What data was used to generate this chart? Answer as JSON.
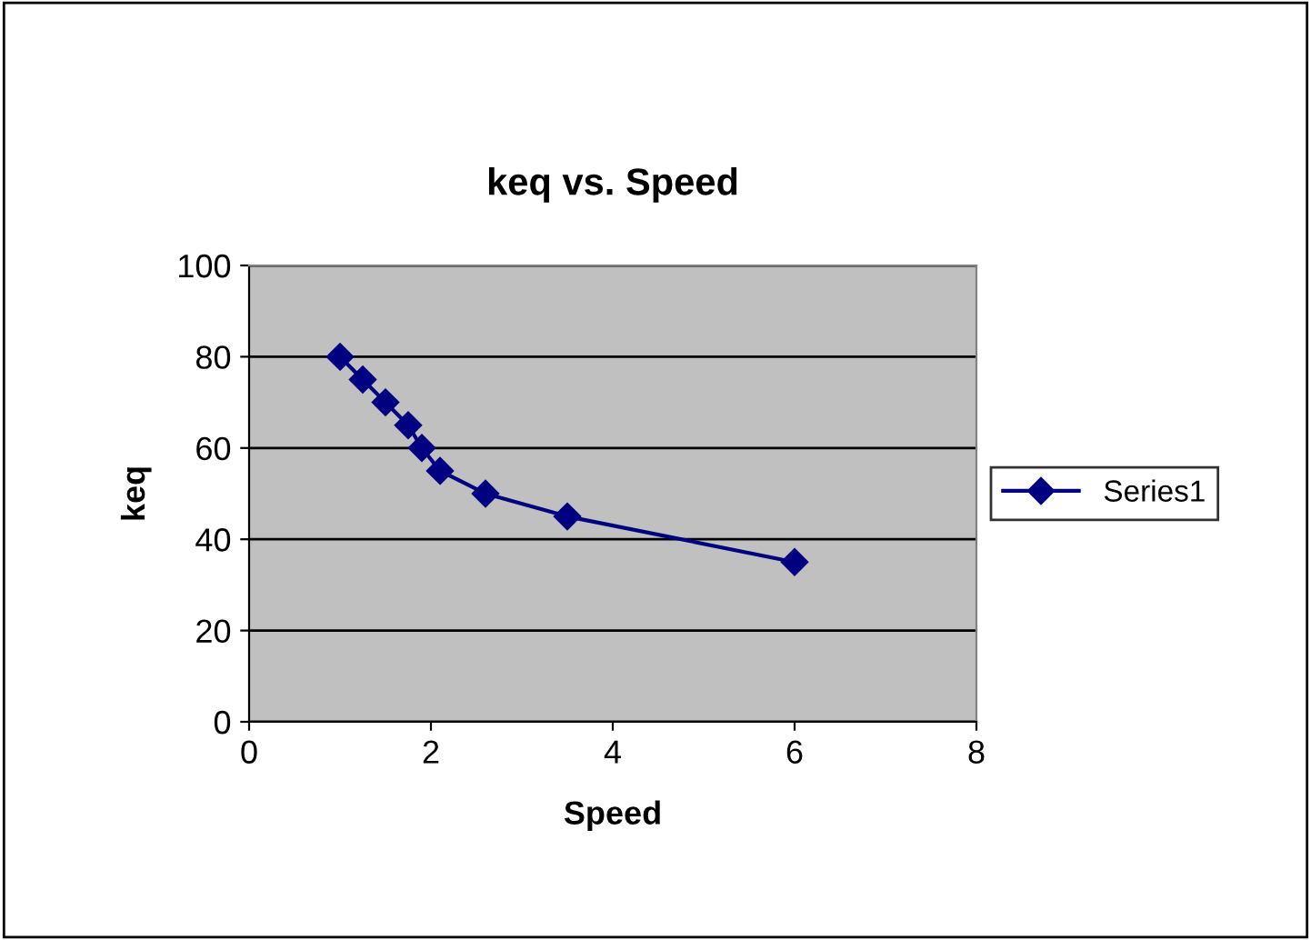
{
  "chart_data": {
    "type": "line",
    "title": "keq vs. Speed",
    "xlabel": "Speed",
    "ylabel": "keq",
    "series": [
      {
        "name": "Series1",
        "color": "#000080",
        "x": [
          1,
          1.25,
          1.5,
          1.75,
          1.9,
          2.1,
          2.6,
          3.5,
          6
        ],
        "values": [
          80,
          75,
          70,
          65,
          60,
          55,
          50,
          45,
          35
        ]
      }
    ],
    "xlim": [
      0,
      8
    ],
    "xticks": [
      0,
      2,
      4,
      6,
      8
    ],
    "ylim": [
      0,
      100
    ],
    "yticks": [
      0,
      20,
      40,
      60,
      80,
      100
    ],
    "grid": "y",
    "legend": "right",
    "marker": "diamond",
    "line_style": "solid"
  }
}
